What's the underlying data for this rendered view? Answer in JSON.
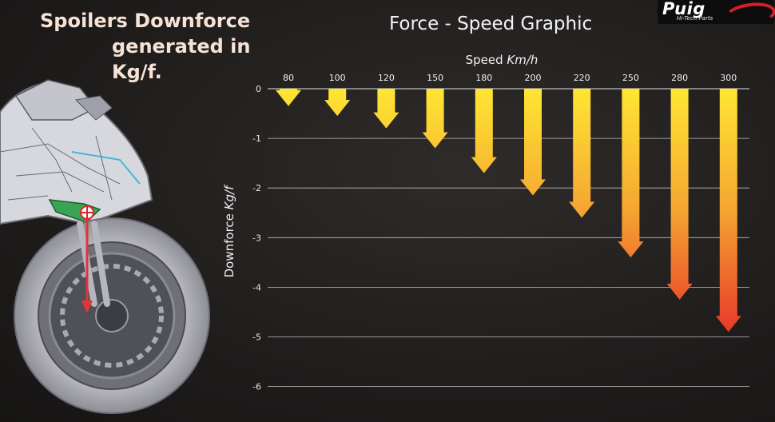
{
  "headline": {
    "line1": "Spoilers Downforce",
    "line2": "generated in Kg/f."
  },
  "logo": {
    "brand": "Puig",
    "tagline": "Hi-Tech Parts"
  },
  "colors": {
    "arrow_top": "#ffe633",
    "arrow_bottom": "#e8392a",
    "grid": "#bdbdbd",
    "headline": "#f7e3d6"
  },
  "chart_data": {
    "type": "bar",
    "title": "Force - Speed Graphic",
    "xlabel_prefix": "Speed",
    "xlabel_unit": "Km/h",
    "ylabel_prefix": "Downforce",
    "ylabel_unit": "Kg/f",
    "categories": [
      "80",
      "100",
      "120",
      "150",
      "180",
      "200",
      "220",
      "250",
      "280",
      "300"
    ],
    "values": [
      -0.35,
      -0.55,
      -0.8,
      -1.2,
      -1.7,
      -2.15,
      -2.6,
      -3.4,
      -4.25,
      -4.9
    ],
    "ylim": [
      -6,
      0
    ],
    "yticks": [
      "0",
      "-1",
      "-2",
      "-3",
      "-4",
      "-5",
      "-6"
    ],
    "grid": true,
    "x_axis_position": "top",
    "style": "downward arrows"
  }
}
